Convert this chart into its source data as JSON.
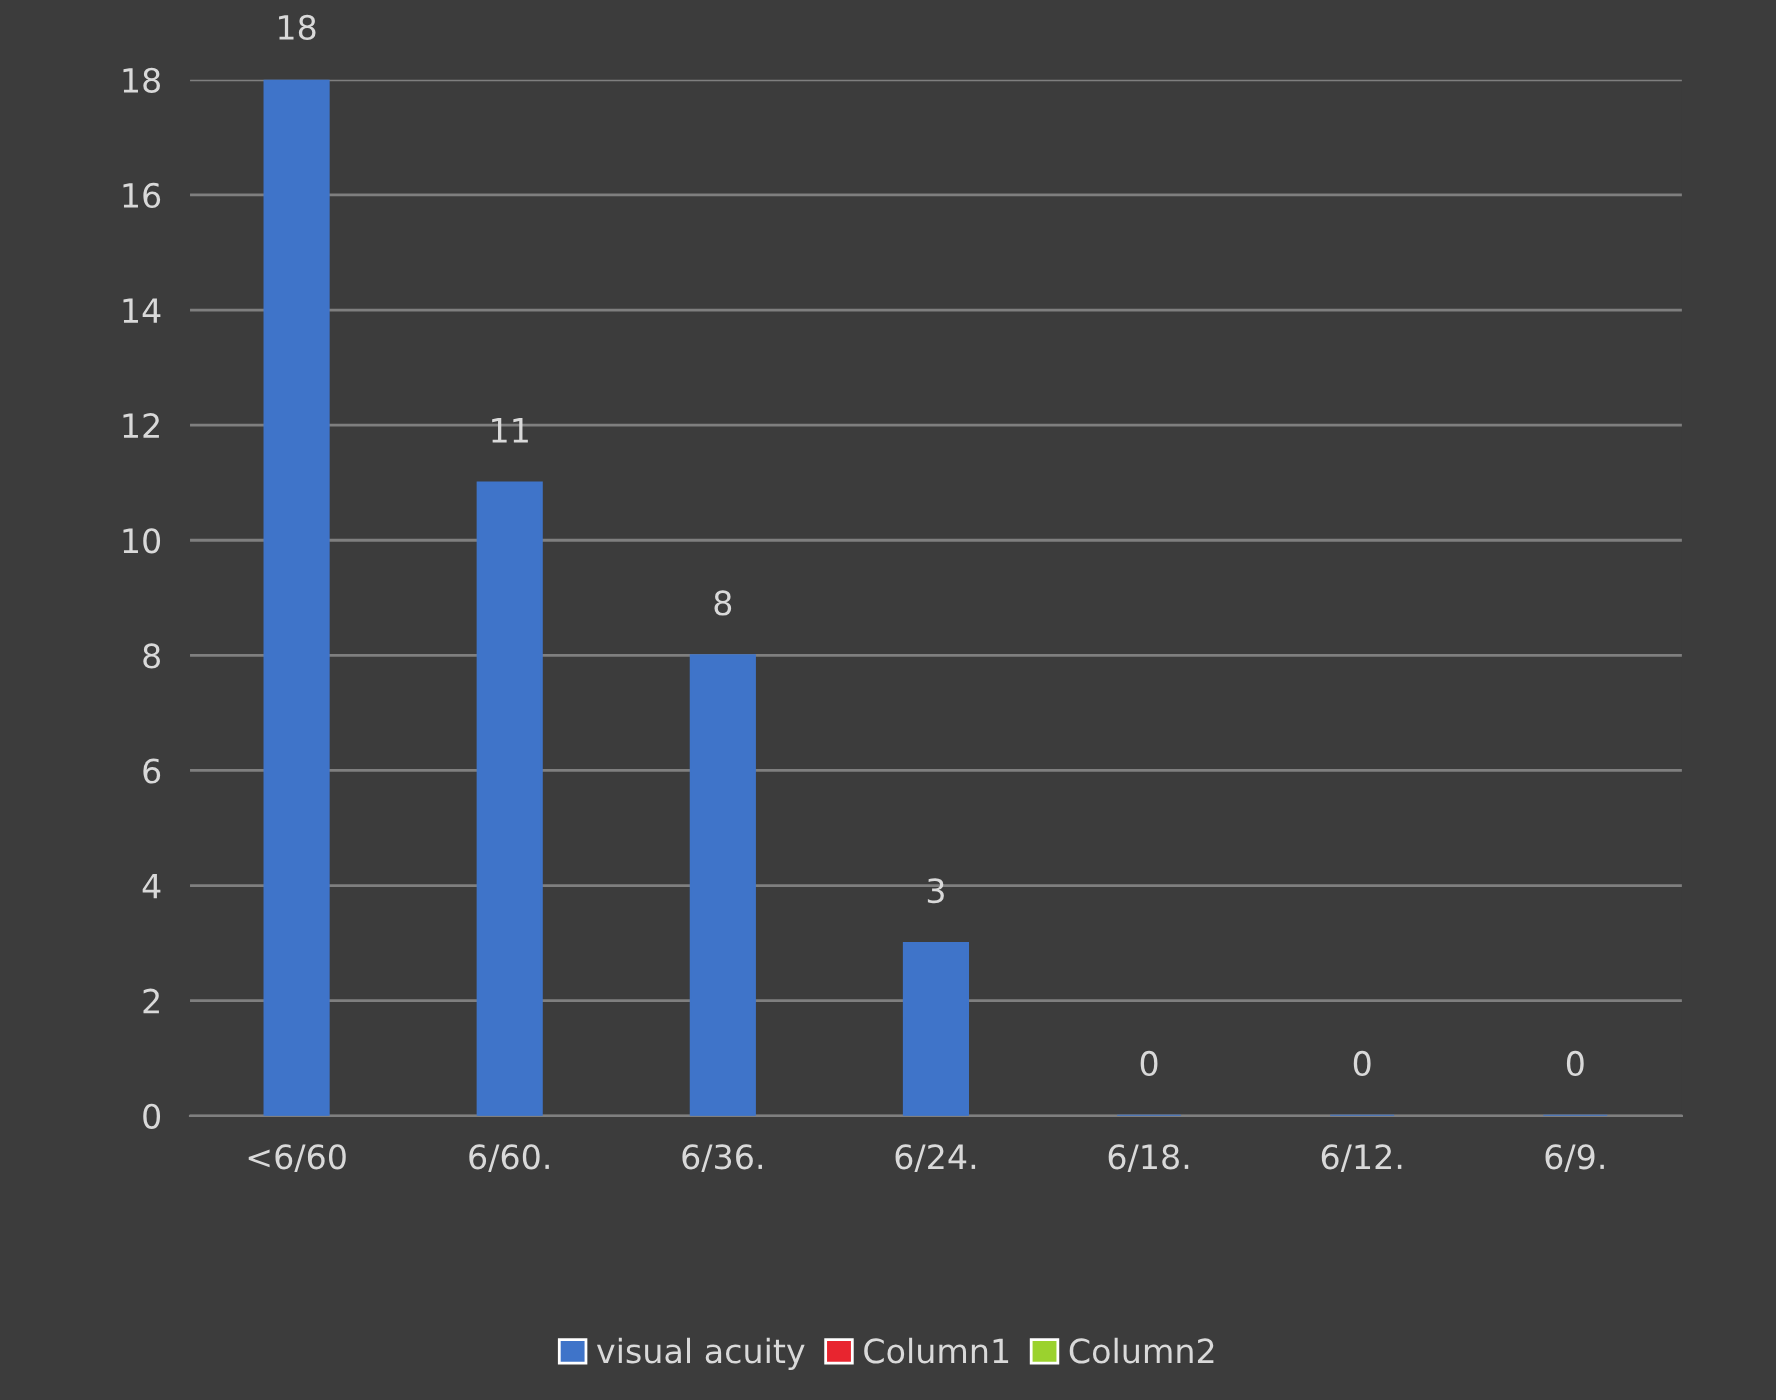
{
  "chart_data": {
    "type": "bar",
    "categories": [
      "<6/60",
      "6/60.",
      "6/36.",
      "6/24.",
      "6/18.",
      "6/12.",
      "6/9."
    ],
    "series": [
      {
        "name": "visual acuity",
        "color": "#3f74c9",
        "values": [
          18,
          11,
          8,
          3,
          0,
          0,
          0
        ]
      },
      {
        "name": "Column1",
        "color": "#e8252f",
        "values": [
          null,
          null,
          null,
          null,
          null,
          null,
          null
        ]
      },
      {
        "name": "Column2",
        "color": "#9bd22e",
        "values": [
          null,
          null,
          null,
          null,
          null,
          null,
          null
        ]
      }
    ],
    "ylim": [
      0,
      18
    ],
    "yticks": [
      0,
      2,
      4,
      6,
      8,
      10,
      12,
      14,
      16,
      18
    ],
    "grid": "y",
    "legend": "bottom",
    "data_labels": true
  }
}
